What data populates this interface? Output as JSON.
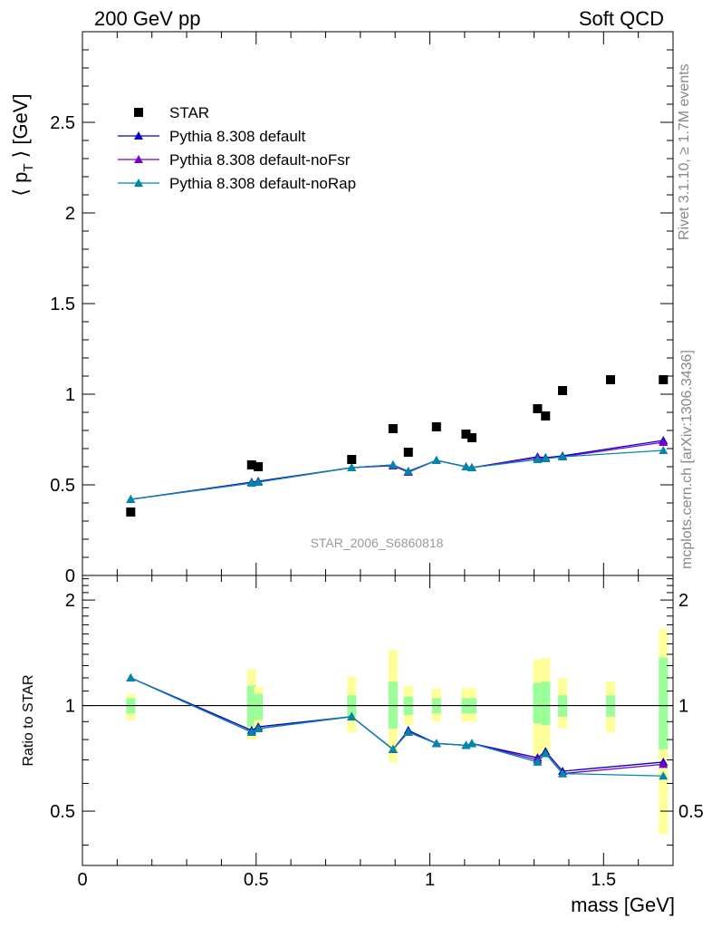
{
  "header": {
    "left": "200 GeV pp",
    "right": "Soft QCD"
  },
  "side_labels": {
    "rivet": "Rivet 3.1.10, ≥ 1.7M events",
    "mcplots": "mcplots.cern.ch [arXiv:1306.3436]"
  },
  "watermark": "STAR_2006_S6860818",
  "chart_data": [
    {
      "type": "scatter",
      "title": "",
      "xlabel": "mass [GeV]",
      "ylabel": "⟨ p_T ⟩ [GeV]",
      "ylabel_main": "⟨ p",
      "ylabel_sub": "T",
      "ylabel_tail": " ⟩ [GeV]",
      "xlim": [
        0,
        1.7
      ],
      "ylim": [
        0,
        3.0
      ],
      "x_ticks": [
        "0",
        "0.5",
        "1",
        "1.5"
      ],
      "y_ticks": [
        "0",
        "0.5",
        "1",
        "1.5",
        "2",
        "2.5"
      ],
      "legend_position": "top-left",
      "legend": [
        "STAR",
        "Pythia 8.308 default",
        "Pythia 8.308 default-noFsr",
        "Pythia 8.308 default-noRap"
      ],
      "data": {
        "name": "STAR",
        "x": [
          0.139,
          0.487,
          0.506,
          0.775,
          0.894,
          0.938,
          1.019,
          1.104,
          1.121,
          1.31,
          1.333,
          1.382,
          1.52,
          1.672
        ],
        "y": [
          0.35,
          0.61,
          0.6,
          0.64,
          0.81,
          0.68,
          0.82,
          0.78,
          0.76,
          0.92,
          0.88,
          1.02,
          1.08,
          1.08
        ]
      },
      "series": [
        {
          "name": "Pythia 8.308 default",
          "color": "#0000cc",
          "x": [
            0.139,
            0.487,
            0.506,
            0.775,
            0.894,
            0.938,
            1.019,
            1.104,
            1.121,
            1.31,
            1.333,
            1.382,
            1.672
          ],
          "y": [
            0.42,
            0.515,
            0.52,
            0.595,
            0.61,
            0.575,
            0.635,
            0.6,
            0.595,
            0.655,
            0.65,
            0.66,
            0.745
          ]
        },
        {
          "name": "Pythia 8.308 default-noFsr",
          "color": "#7700cc",
          "x": [
            0.139,
            0.487,
            0.506,
            0.775,
            0.894,
            0.938,
            1.019,
            1.104,
            1.121,
            1.31,
            1.333,
            1.382,
            1.672
          ],
          "y": [
            0.42,
            0.51,
            0.515,
            0.595,
            0.605,
            0.57,
            0.635,
            0.6,
            0.595,
            0.65,
            0.645,
            0.655,
            0.735
          ]
        },
        {
          "name": "Pythia 8.308 default-noRap",
          "color": "#0088aa",
          "x": [
            0.139,
            0.487,
            0.506,
            0.775,
            0.894,
            0.938,
            1.019,
            1.104,
            1.121,
            1.31,
            1.333,
            1.382,
            1.672
          ],
          "y": [
            0.42,
            0.51,
            0.515,
            0.595,
            0.61,
            0.575,
            0.635,
            0.6,
            0.595,
            0.64,
            0.645,
            0.655,
            0.69
          ]
        }
      ]
    },
    {
      "type": "line",
      "title": "",
      "xlabel": "mass [GeV]",
      "ylabel": "Ratio to STAR",
      "xlim": [
        0,
        1.7
      ],
      "ylim": [
        0.35,
        2.35
      ],
      "y_ticks": [
        "0.5",
        "1",
        "2"
      ],
      "reference_line": 1,
      "bands": {
        "x": [
          0.139,
          0.487,
          0.506,
          0.775,
          0.894,
          0.938,
          1.019,
          1.104,
          1.121,
          1.31,
          1.333,
          1.382,
          1.52,
          1.672
        ],
        "inner": [
          [
            0.95,
            1.05
          ],
          [
            0.87,
            1.14
          ],
          [
            0.91,
            1.08
          ],
          [
            0.93,
            1.07
          ],
          [
            0.86,
            1.17
          ],
          [
            0.94,
            1.06
          ],
          [
            0.95,
            1.05
          ],
          [
            0.95,
            1.05
          ],
          [
            0.95,
            1.05
          ],
          [
            0.89,
            1.16
          ],
          [
            0.88,
            1.17
          ],
          [
            0.93,
            1.07
          ],
          [
            0.93,
            1.07
          ],
          [
            0.75,
            1.37
          ]
        ],
        "outer": [
          [
            0.91,
            1.08
          ],
          [
            0.8,
            1.27
          ],
          [
            0.86,
            1.13
          ],
          [
            0.84,
            1.21
          ],
          [
            0.69,
            1.44
          ],
          [
            0.88,
            1.14
          ],
          [
            0.9,
            1.12
          ],
          [
            0.9,
            1.12
          ],
          [
            0.9,
            1.12
          ],
          [
            0.7,
            1.35
          ],
          [
            0.72,
            1.37
          ],
          [
            0.86,
            1.2
          ],
          [
            0.84,
            1.17
          ],
          [
            0.43,
            1.65
          ]
        ]
      },
      "series": [
        {
          "name": "Pythia 8.308 default",
          "color": "#0000cc",
          "x": [
            0.139,
            0.487,
            0.506,
            0.775,
            0.894,
            0.938,
            1.019,
            1.104,
            1.121,
            1.31,
            1.333,
            1.382,
            1.672
          ],
          "y": [
            1.2,
            0.85,
            0.87,
            0.93,
            0.75,
            0.85,
            0.78,
            0.77,
            0.78,
            0.71,
            0.74,
            0.65,
            0.69
          ]
        },
        {
          "name": "Pythia 8.308 default-noFsr",
          "color": "#7700cc",
          "x": [
            0.139,
            0.487,
            0.506,
            0.775,
            0.894,
            0.938,
            1.019,
            1.104,
            1.121,
            1.31,
            1.333,
            1.382,
            1.672
          ],
          "y": [
            1.2,
            0.84,
            0.86,
            0.93,
            0.75,
            0.84,
            0.78,
            0.77,
            0.78,
            0.7,
            0.73,
            0.64,
            0.68
          ]
        },
        {
          "name": "Pythia 8.308 default-noRap",
          "color": "#0088aa",
          "x": [
            0.139,
            0.487,
            0.506,
            0.775,
            0.894,
            0.938,
            1.019,
            1.104,
            1.121,
            1.31,
            1.333,
            1.382,
            1.672
          ],
          "y": [
            1.2,
            0.84,
            0.86,
            0.93,
            0.75,
            0.84,
            0.78,
            0.77,
            0.78,
            0.69,
            0.73,
            0.64,
            0.63
          ]
        }
      ]
    }
  ]
}
